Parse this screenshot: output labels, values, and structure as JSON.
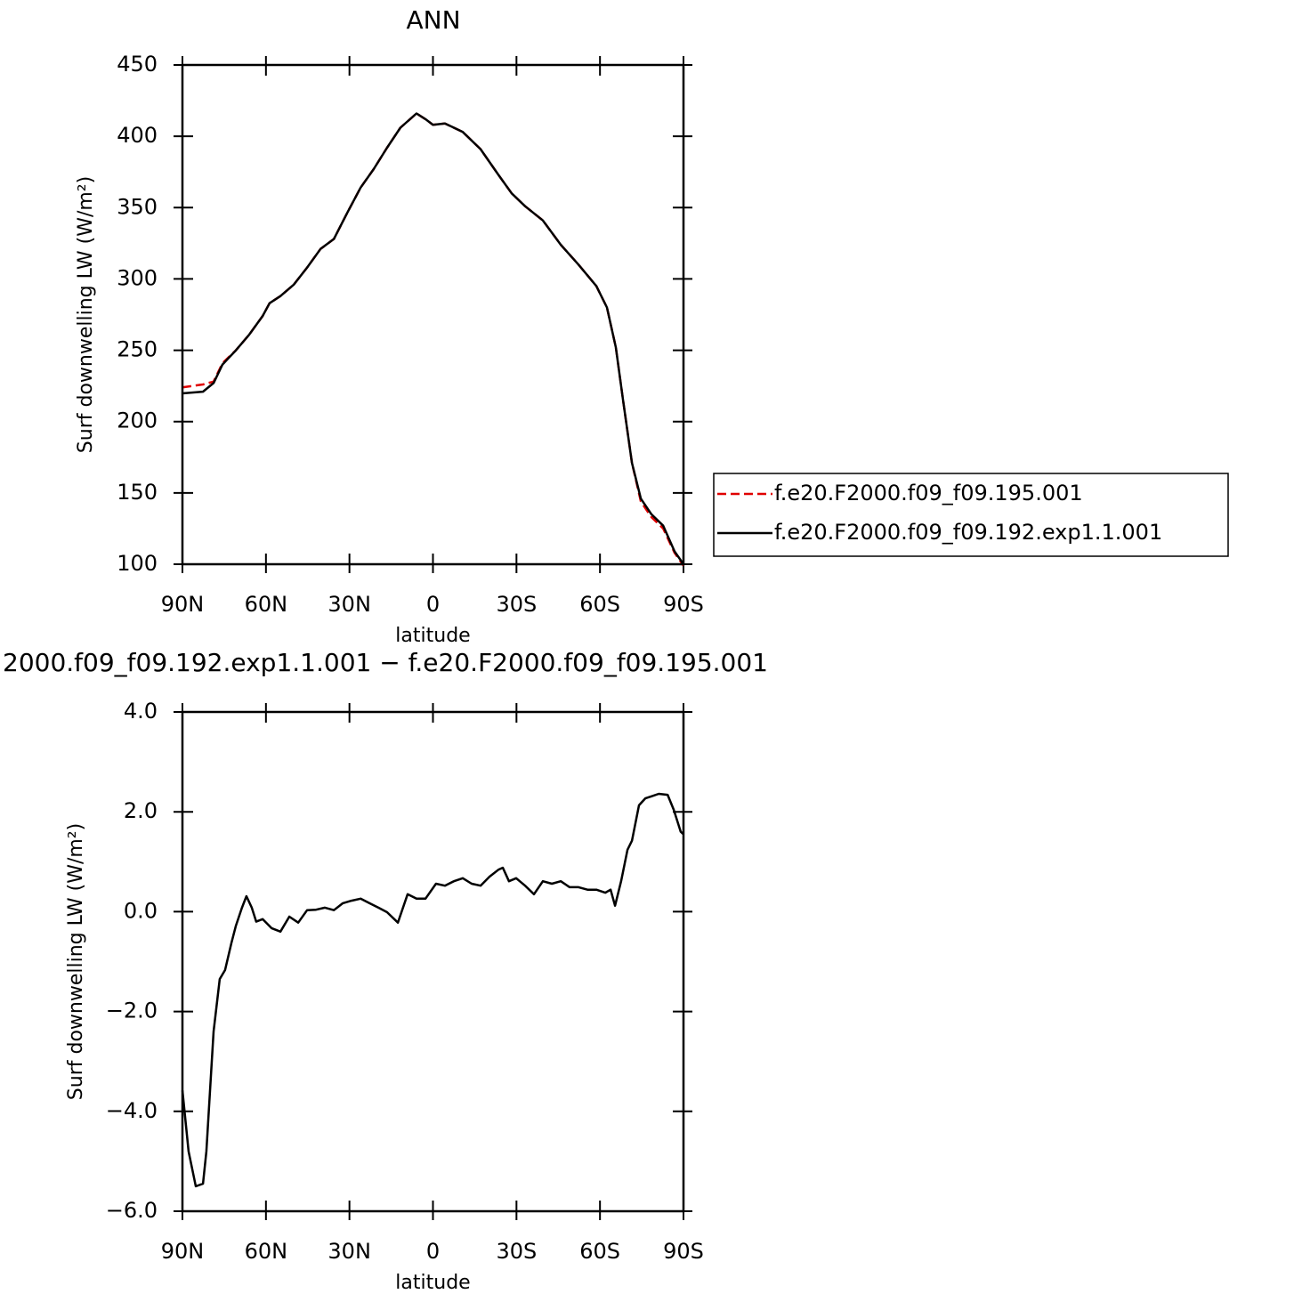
{
  "chart_data": [
    {
      "type": "line",
      "title": "ANN",
      "xlabel": "latitude",
      "ylabel": "Surf downwelling LW (W/m²)",
      "xlim": [
        90,
        -90
      ],
      "ylim": [
        100,
        450
      ],
      "xticks": [
        {
          "value": 90,
          "label": "90N"
        },
        {
          "value": 60,
          "label": "60N"
        },
        {
          "value": 30,
          "label": "30N"
        },
        0,
        {
          "value": -30,
          "label": "30S"
        },
        {
          "value": -60,
          "label": "60S"
        },
        {
          "value": -90,
          "label": "90S"
        }
      ],
      "yticks": [
        100,
        150,
        200,
        250,
        300,
        350,
        400,
        450
      ],
      "legend": "right",
      "x": [
        90,
        82.6,
        78.8,
        75.6,
        70.8,
        66,
        61.2,
        58.7,
        54.8,
        50,
        45.2,
        40.4,
        35.6,
        30.9,
        26,
        21.3,
        16.5,
        11.7,
        5.9,
        2.7,
        0,
        -4.3,
        -10.7,
        -17.1,
        -23.5,
        -28.3,
        -33.1,
        -39.5,
        -45.9,
        -52.3,
        -58.7,
        -62.5,
        -65.7,
        -68.3,
        -71.5,
        -74.7,
        -78.5,
        -82.7,
        -86.8,
        -90
      ],
      "series": [
        {
          "name": "f.e20.F2000.f09_f09.195.001",
          "color": "#e00000",
          "linestyle": "dashed",
          "values": [
            224,
            226,
            228,
            241,
            250,
            261,
            274,
            283,
            288,
            296,
            308,
            321,
            328,
            346,
            364,
            377,
            392,
            406,
            416,
            412,
            408,
            409,
            403,
            391,
            373,
            360,
            351,
            341,
            324,
            310,
            295,
            280,
            252,
            215,
            171,
            144,
            133,
            125,
            108,
            99
          ]
        },
        {
          "name": "f.e20.F2000.f09_f09.192.exp1.1.001",
          "color": "#000000",
          "linestyle": "solid",
          "values": [
            219.8,
            221,
            227,
            240,
            250,
            261,
            274,
            283,
            288,
            296,
            308,
            321,
            328,
            346,
            364,
            377,
            392,
            406,
            416,
            412,
            408,
            409,
            403,
            391,
            373,
            360,
            351,
            341,
            324,
            310,
            295,
            280,
            252,
            215,
            171,
            146,
            135,
            127,
            109,
            100
          ]
        }
      ]
    },
    {
      "type": "line",
      "title": "2000.f09_f09.192.exp1.1.001 − f.e20.F2000.f09_f09.195.001",
      "xlabel": "latitude",
      "ylabel": "Surf downwelling LW (W/m²)",
      "xlim": [
        90,
        -90
      ],
      "ylim": [
        -6,
        4
      ],
      "xticks": [
        {
          "value": 90,
          "label": "90N"
        },
        {
          "value": 60,
          "label": "60N"
        },
        {
          "value": 30,
          "label": "30N"
        },
        0,
        {
          "value": -30,
          "label": "30S"
        },
        {
          "value": -60,
          "label": "60S"
        },
        {
          "value": -90,
          "label": "90S"
        }
      ],
      "yticks": [
        {
          "value": -6,
          "label": "−6.0"
        },
        {
          "value": -4,
          "label": "−4.0"
        },
        {
          "value": -2,
          "label": "−2.0"
        },
        {
          "value": 0,
          "label": "0.0"
        },
        {
          "value": 2,
          "label": "2.0"
        },
        {
          "value": 4,
          "label": "4.0"
        }
      ],
      "x": [
        90,
        87.8,
        85.2,
        82.6,
        81.4,
        78.8,
        76.6,
        74.7,
        72.4,
        70.8,
        68.6,
        67,
        65.1,
        63.5,
        61.2,
        58,
        54.8,
        51.6,
        48.4,
        45.2,
        42,
        38.8,
        35.6,
        32.4,
        29.3,
        26,
        22.8,
        19.6,
        16.5,
        12.6,
        9.1,
        5.9,
        2.7,
        -1.1,
        -4.3,
        -7.5,
        -10.7,
        -13.9,
        -17.1,
        -20.3,
        -23.5,
        -25.1,
        -27.3,
        -29.9,
        -33.1,
        -36.3,
        -39.5,
        -42.7,
        -45.9,
        -49.1,
        -52.3,
        -55.5,
        -58.7,
        -61.9,
        -63.8,
        -65.4,
        -67.6,
        -69.9,
        -71.5,
        -74,
        -76.3,
        -78.5,
        -81.1,
        -84.3,
        -86.5,
        -89,
        -90
      ],
      "series": [
        {
          "color": "#000000",
          "linestyle": "solid",
          "values": [
            -3.58,
            -4.8,
            -5.5,
            -5.45,
            -4.8,
            -2.4,
            -1.35,
            -1.17,
            -0.63,
            -0.28,
            0.08,
            0.31,
            0.08,
            -0.2,
            -0.15,
            -0.33,
            -0.4,
            -0.1,
            -0.22,
            0.03,
            0.04,
            0.08,
            0.03,
            0.17,
            0.22,
            0.26,
            0.17,
            0.08,
            -0.01,
            -0.22,
            0.35,
            0.26,
            0.26,
            0.56,
            0.52,
            0.61,
            0.67,
            0.56,
            0.52,
            0.7,
            0.84,
            0.88,
            0.61,
            0.67,
            0.52,
            0.35,
            0.61,
            0.56,
            0.61,
            0.49,
            0.49,
            0.44,
            0.44,
            0.38,
            0.44,
            0.12,
            0.61,
            1.24,
            1.42,
            2.13,
            2.27,
            2.31,
            2.36,
            2.34,
            2.04,
            1.6,
            1.55
          ]
        }
      ]
    }
  ]
}
